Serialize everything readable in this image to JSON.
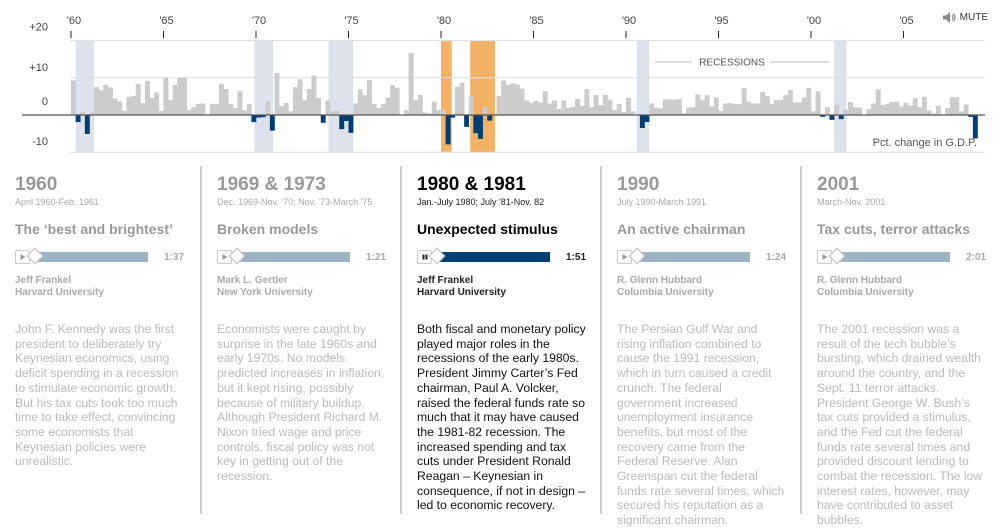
{
  "mute_label": "MUTE",
  "chart_data": {
    "type": "bar",
    "title": "",
    "xlabel": "",
    "ylabel": "Pct. change in G.D.P.",
    "ylim": [
      -10,
      20
    ],
    "y_ticks": [
      {
        "value": 20,
        "label": "+20"
      },
      {
        "value": 10,
        "label": "+10"
      },
      {
        "value": 0,
        "label": "0"
      },
      {
        "value": -10,
        "label": "-10"
      }
    ],
    "x_range": [
      1960,
      2009
    ],
    "x_ticks": [
      {
        "value": 1960,
        "label": "'60"
      },
      {
        "value": 1965,
        "label": "'65"
      },
      {
        "value": 1970,
        "label": "'70"
      },
      {
        "value": 1975,
        "label": "'75"
      },
      {
        "value": 1980,
        "label": "'80"
      },
      {
        "value": 1985,
        "label": "'85"
      },
      {
        "value": 1990,
        "label": "'90"
      },
      {
        "value": 1995,
        "label": "'95"
      },
      {
        "value": 2000,
        "label": "'00"
      },
      {
        "value": 2005,
        "label": "'05"
      }
    ],
    "series": [
      {
        "name": "Quarterly pct. change in G.D.P.",
        "start": 1960,
        "step": 0.25,
        "positive_color": "#cccccc",
        "negative_color": "#003f73",
        "values": [
          9.3,
          -1.9,
          0.9,
          -5.1,
          0.6,
          7.5,
          6.7,
          8.1,
          7.4,
          4.4,
          3.6,
          1.1,
          4.9,
          5.1,
          8.4,
          3.2,
          9.2,
          4.6,
          6.1,
          1.1,
          10.0,
          4.0,
          8.1,
          10.0,
          10.0,
          1.3,
          2.1,
          3.0,
          3.1,
          0.2,
          3.0,
          3.0,
          8.4,
          7.0,
          3.0,
          1.9,
          6.4,
          1.2,
          2.9,
          -1.9,
          -0.7,
          -0.6,
          3.6,
          -4.2,
          11.3,
          2.4,
          3.2,
          1.0,
          7.5,
          9.6,
          3.9,
          7.0,
          10.6,
          4.6,
          -2.1,
          3.9,
          1.0,
          1.2,
          -3.8,
          -1.6,
          -4.8,
          3.1,
          6.9,
          5.3,
          9.4,
          3.0,
          1.9,
          2.9,
          4.7,
          8.0,
          7.3,
          0.0,
          1.3,
          16.7,
          4.0,
          5.4,
          0.7,
          0.4,
          3.6,
          1.3,
          1.3,
          -7.9,
          -0.7,
          7.6,
          8.6,
          -3.2,
          4.9,
          -4.9,
          -6.4,
          2.2,
          -1.5,
          0.3,
          5.1,
          9.3,
          8.1,
          8.5,
          8.2,
          7.1,
          3.9,
          3.3,
          3.8,
          3.4,
          6.4,
          3.1,
          3.9,
          1.6,
          3.9,
          1.9,
          2.2,
          4.3,
          2.5,
          7.0,
          2.1,
          5.4,
          2.7,
          5.4,
          4.1,
          1.3,
          3.0,
          0.8,
          4.6,
          1.0,
          0.0,
          -3.5,
          -1.9,
          3.1,
          2.0,
          1.8,
          4.2,
          4.2,
          4.1,
          4.3,
          0.5,
          2.0,
          2.1,
          5.5,
          4.1,
          5.3,
          2.3,
          4.8,
          1.1,
          3.1,
          3.2,
          3.0,
          2.9,
          7.2,
          3.6,
          3.1,
          3.1,
          6.2,
          5.1,
          3.0,
          4.0,
          4.0,
          5.3,
          6.7,
          3.4,
          3.4,
          4.7,
          7.3,
          1.0,
          6.4,
          -0.5,
          2.1,
          -1.3,
          2.7,
          -1.1,
          1.4,
          3.5,
          2.1,
          2.0,
          0.1,
          1.6,
          3.1,
          6.9,
          2.7,
          3.0,
          3.5,
          3.6,
          2.3,
          3.3,
          2.6,
          4.5,
          2.1,
          4.9,
          1.2,
          0.4,
          2.5,
          0.1,
          1.9,
          4.8,
          4.8,
          0.9,
          2.8,
          -0.5,
          -6.3
        ]
      }
    ],
    "recessions": [
      {
        "start": 1960.25,
        "end": 1961.25,
        "highlighted": false
      },
      {
        "start": 1969.92,
        "end": 1970.92,
        "highlighted": false
      },
      {
        "start": 1973.92,
        "end": 1975.25,
        "highlighted": false
      },
      {
        "start": 1980.0,
        "end": 1980.58,
        "highlighted": true
      },
      {
        "start": 1981.58,
        "end": 1982.92,
        "highlighted": true
      },
      {
        "start": 1990.58,
        "end": 1991.25,
        "highlighted": false
      },
      {
        "start": 2001.25,
        "end": 2001.92,
        "highlighted": false
      }
    ],
    "recession_color": "#dde2ec",
    "highlight_color": "#f2b164",
    "recessions_label": "RECESSIONS",
    "axis_note": "Pct. change in G.D.P.",
    "grid": true
  },
  "panels": [
    {
      "year": "1960",
      "dates": "April 1960-Feb. 1961",
      "title": "The ‘best and brightest’",
      "state": "play",
      "duration": "1:37",
      "speaker_name": "Jeff Frankel",
      "speaker_affiliation": "Harvard University",
      "body": "John F. Kennedy was the first president to deliberately try Keynesian economics, using deficit spending in a recession to stimulate economic growth. But his tax cuts took too much time to take effect, convincing some economists that Keynesian policies were unrealistic."
    },
    {
      "year": "1969 & 1973",
      "dates": "Dec. 1969-Nov. '70; Nov. '73-March '75",
      "title": "Broken models",
      "state": "play",
      "duration": "1:21",
      "speaker_name": "Mark L. Gertler",
      "speaker_affiliation": "New York University",
      "body": "Economists were caught by surprise in the late 1960s and early 1970s. No models predicted increases in inflation, but it kept rising, possibly because of military buildup. Although President Richard M. Nixon tried wage and price controls, fiscal policy was not key in getting out of the recession."
    },
    {
      "year": "1980 & 1981",
      "dates": "Jan.-July 1980; July '81-Nov. 82",
      "title": "Unexpected stimulus",
      "state": "pause",
      "duration": "1:51",
      "speaker_name": "Jeff Frankel",
      "speaker_affiliation": "Harvard University",
      "body": "Both fiscal and monetary policy played major roles in the recessions of the early 1980s. President Jimmy Carter’s Fed chairman, Paul A. Volcker, raised the federal funds rate so much that it may have caused the 1981-82 recession. The increased spending and tax cuts under President Ronald Reagan – Keynesian in consequence, if not in design – led to economic recovery."
    },
    {
      "year": "1990",
      "dates": "July 1990-March 1991",
      "title": "An active chairman",
      "state": "play",
      "duration": "1:24",
      "speaker_name": "R. Glenn Hubbard",
      "speaker_affiliation": "Columbia University",
      "body": "The Persian Gulf War and rising inflation combined to cause the 1991 recession, which in turn caused a credit crunch. The federal government increased unemployment insurance benefits, but most of the recovery came from the Federal Reserve. Alan Greenspan cut the federal funds rate several times, which secured his reputation as a significant chairman."
    },
    {
      "year": "2001",
      "dates": "March-Nov. 2001",
      "title": "Tax cuts, terror attacks",
      "state": "play",
      "duration": "2:01",
      "speaker_name": "R. Glenn Hubbard",
      "speaker_affiliation": "Columbia University",
      "body": "The 2001 recession was a result of the tech bubble’s bursting, which drained wealth around the country, and the Sept. 11 terror attacks. President George W. Bush’s tax cuts provided a stimulus, and the Fed cut the federal funds rate several times and provided discount lending to combat the recession. The low interest rates, however, may have contributed to asset bubbles."
    }
  ],
  "active_panel": 2
}
